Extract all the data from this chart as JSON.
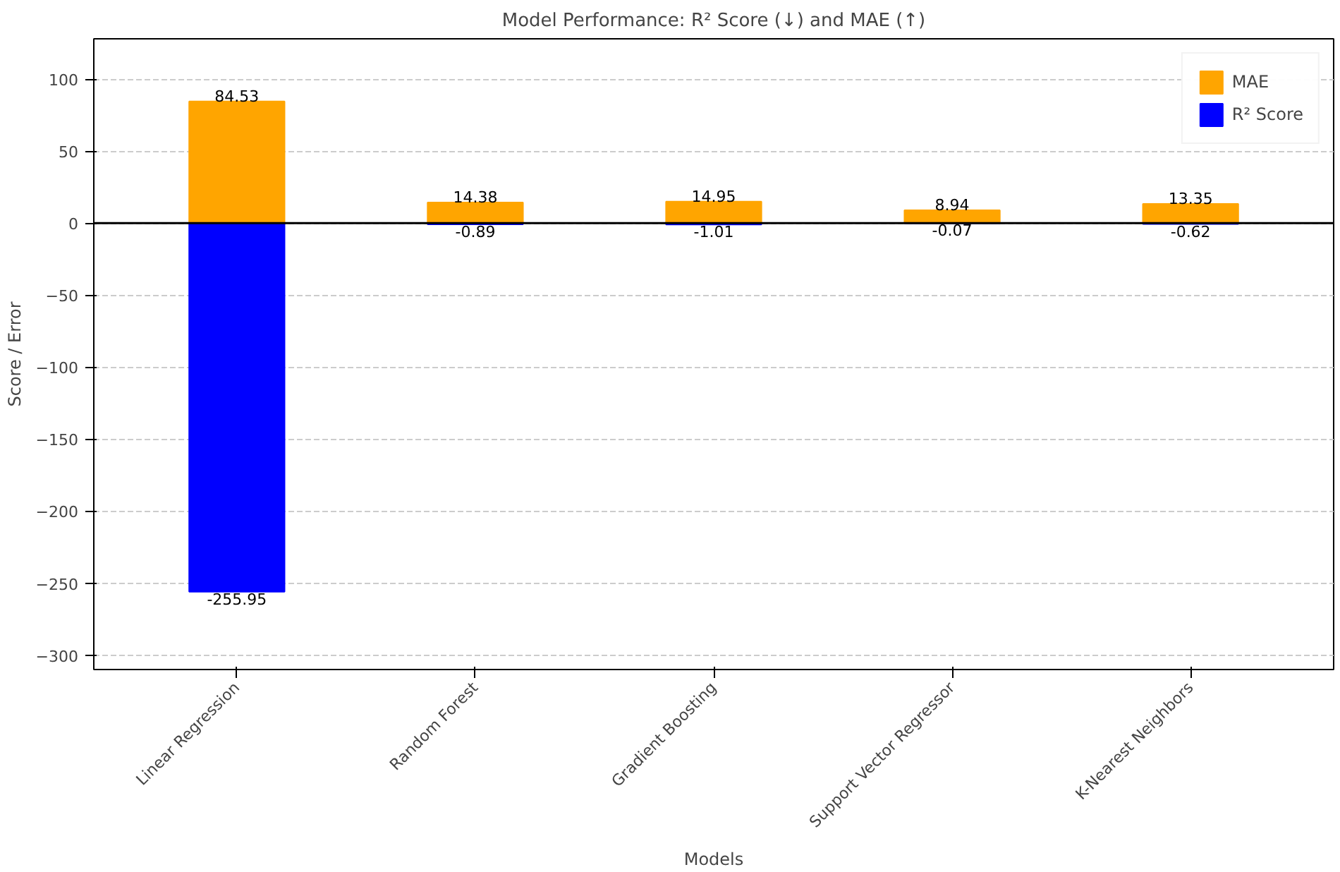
{
  "chart_data": {
    "type": "bar",
    "title": "Model Performance: R² Score (↓) and MAE (↑)",
    "xlabel": "Models",
    "ylabel": "Score / Error",
    "categories": [
      "Linear Regression",
      "Random Forest",
      "Gradient Boosting",
      "Support Vector Regressor",
      "K-Nearest Neighbors"
    ],
    "series": [
      {
        "name": "MAE",
        "color": "#ffa500",
        "values": [
          84.53,
          14.38,
          14.95,
          8.94,
          13.35
        ]
      },
      {
        "name": "R² Score",
        "color": "#0000ff",
        "values": [
          -255.95,
          -0.89,
          -1.01,
          -0.07,
          -0.62
        ]
      }
    ],
    "ylim": [
      -310,
      128
    ],
    "yticks": [
      -300,
      -250,
      -200,
      -150,
      -100,
      -50,
      0,
      50,
      100
    ],
    "ref_lines": [
      {
        "axis": "y",
        "value": 0,
        "color": "#000000"
      }
    ],
    "grid": "y",
    "legend": "top right",
    "data_labels": true
  }
}
